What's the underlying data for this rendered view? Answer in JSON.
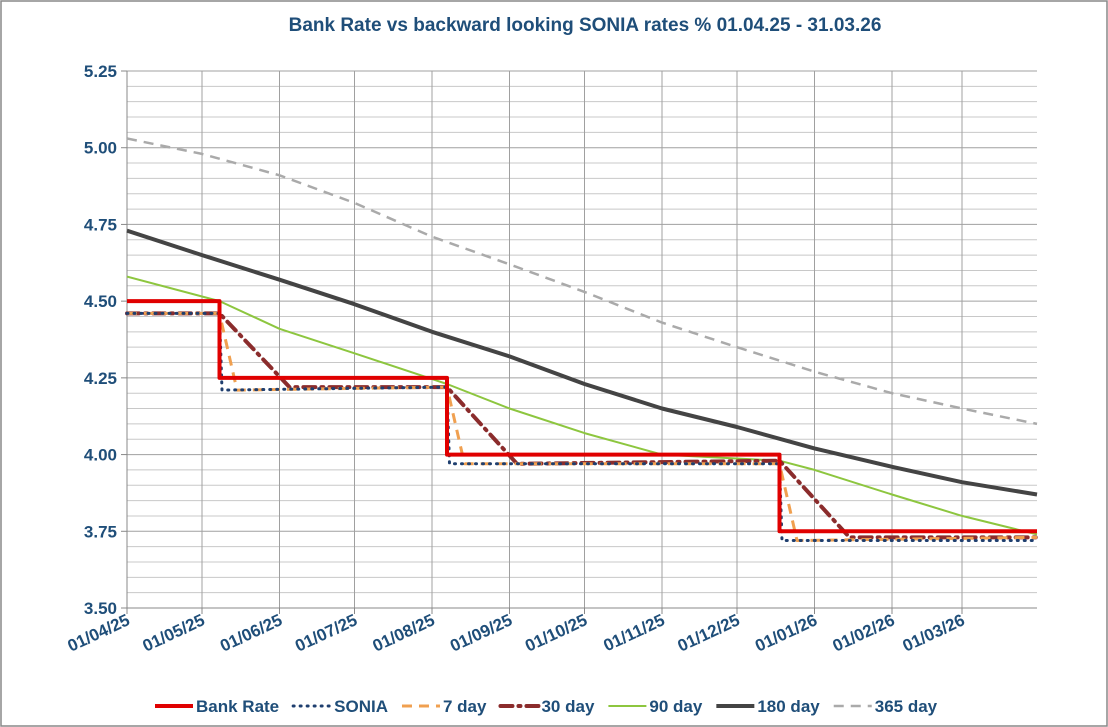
{
  "chart_data": {
    "type": "line",
    "title": "Bank Rate vs backward looking SONIA rates % 01.04.25 - 31.03.26",
    "xlim": [
      "01/04/25",
      "31/03/26"
    ],
    "xticks": [
      "01/04/25",
      "01/05/25",
      "01/06/25",
      "01/07/25",
      "01/08/25",
      "01/09/25",
      "01/10/25",
      "01/11/25",
      "01/12/25",
      "01/01/26",
      "01/02/26",
      "01/03/26"
    ],
    "ylim": [
      3.5,
      5.25
    ],
    "yticks": [
      {
        "value": 3.5,
        "label": "3.50"
      },
      3.75,
      {
        "value": 4,
        "label": "4.00"
      },
      4.25,
      {
        "value": 4.5,
        "label": "4.50"
      },
      4.75,
      {
        "value": 5,
        "label": "5.00"
      },
      5.25
    ],
    "minor_yticks": [
      3.55,
      3.6,
      3.65,
      3.7,
      3.8,
      3.85,
      3.9,
      3.95,
      4.05,
      4.1,
      4.15,
      4.2,
      4.3,
      4.35,
      4.4,
      4.45,
      4.55,
      4.6,
      4.65,
      4.7,
      4.8,
      4.85,
      4.9,
      4.95,
      5.05,
      5.1,
      5.15,
      5.2
    ],
    "grid": true,
    "legend": "bottom",
    "series": [
      {
        "name": "Bank Rate",
        "color": "#e00000",
        "style": "solid",
        "width": 4,
        "x": [
          "01/04/25",
          "08/05/25",
          "08/05/25",
          "07/08/25",
          "07/08/25",
          "18/12/25",
          "18/12/25",
          "31/03/26"
        ],
        "values": [
          4.5,
          4.5,
          4.25,
          4.25,
          4.0,
          4.0,
          3.75,
          3.75
        ]
      },
      {
        "name": "SONIA",
        "color": "#1f3f6f",
        "style": "dotted",
        "width": 3,
        "x": [
          "01/04/25",
          "08/05/25",
          "09/05/25",
          "07/08/25",
          "08/08/25",
          "18/12/25",
          "19/12/25",
          "31/03/26"
        ],
        "values": [
          4.46,
          4.46,
          4.21,
          4.22,
          3.97,
          3.97,
          3.72,
          3.72
        ]
      },
      {
        "name": "7 day",
        "color": "#f0a050",
        "style": "dashed",
        "width": 3,
        "x": [
          "01/04/25",
          "08/05/25",
          "15/05/25",
          "07/08/25",
          "14/08/25",
          "18/12/25",
          "25/12/25",
          "31/03/26"
        ],
        "values": [
          4.46,
          4.46,
          4.21,
          4.22,
          3.97,
          3.97,
          3.72,
          3.73
        ]
      },
      {
        "name": "30 day",
        "color": "#8b2c2c",
        "style": "dashdot",
        "width": 4,
        "x": [
          "01/04/25",
          "08/05/25",
          "05/06/25",
          "07/08/25",
          "04/09/25",
          "18/12/25",
          "15/01/26",
          "31/03/26"
        ],
        "values": [
          4.46,
          4.46,
          4.22,
          4.22,
          3.97,
          3.98,
          3.73,
          3.73
        ]
      },
      {
        "name": "90 day",
        "color": "#8dc63f",
        "style": "solid",
        "width": 2,
        "x": [
          "01/04/25",
          "08/05/25",
          "01/06/25",
          "01/07/25",
          "07/08/25",
          "01/09/25",
          "01/10/25",
          "01/11/25",
          "18/12/25",
          "01/01/26",
          "01/02/26",
          "01/03/26",
          "31/03/26"
        ],
        "values": [
          4.58,
          4.5,
          4.41,
          4.33,
          4.23,
          4.15,
          4.07,
          4.0,
          3.98,
          3.95,
          3.87,
          3.8,
          3.74
        ]
      },
      {
        "name": "180 day",
        "color": "#444444",
        "style": "solid",
        "width": 4,
        "x": [
          "01/04/25",
          "01/05/25",
          "01/06/25",
          "01/07/25",
          "01/08/25",
          "01/09/25",
          "01/10/25",
          "01/11/25",
          "01/12/25",
          "01/01/26",
          "01/02/26",
          "01/03/26",
          "31/03/26"
        ],
        "values": [
          4.73,
          4.65,
          4.57,
          4.49,
          4.4,
          4.32,
          4.23,
          4.15,
          4.09,
          4.02,
          3.96,
          3.91,
          3.87
        ]
      },
      {
        "name": "365 day",
        "color": "#aaaaaa",
        "style": "dashed",
        "width": 2.5,
        "x": [
          "01/04/25",
          "01/05/25",
          "01/06/25",
          "01/07/25",
          "01/08/25",
          "01/09/25",
          "01/10/25",
          "01/11/25",
          "01/12/25",
          "01/01/26",
          "01/02/26",
          "01/03/26",
          "31/03/26"
        ],
        "values": [
          5.03,
          4.98,
          4.91,
          4.82,
          4.71,
          4.62,
          4.53,
          4.43,
          4.35,
          4.27,
          4.2,
          4.15,
          4.1
        ]
      }
    ]
  }
}
